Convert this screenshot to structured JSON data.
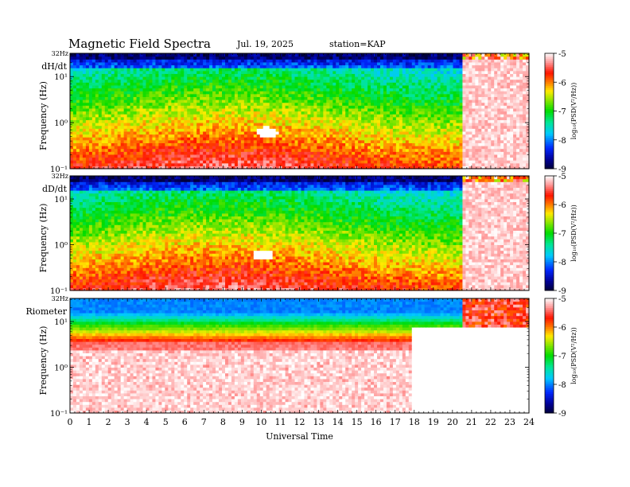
{
  "header": {
    "title": "Magnetic Field Spectra",
    "date": "Jul. 19, 2025",
    "station": "station=KAP"
  },
  "chart_data": [
    {
      "type": "heatmap",
      "panel_label": "dH/dt",
      "ylabel": "Frequency (Hz)",
      "xlabel": "",
      "y_scale": "log",
      "ylim": [
        0.1,
        32
      ],
      "yticks": [
        "10⁻¹",
        "10⁰",
        "10¹"
      ],
      "top_freq_label": "32Hz",
      "xlim": [
        0,
        24
      ],
      "colorbar": {
        "label": "log₁₀(PSD(V²/Hz))",
        "range": [
          -9,
          -5
        ],
        "ticks": [
          "-5",
          "-6",
          "-7",
          "-8",
          "-9"
        ]
      },
      "gap": {
        "center_hour": 10.3,
        "center_freq": 0.62
      },
      "disturbance_start_hour": 20.5
    },
    {
      "type": "heatmap",
      "panel_label": "dD/dt",
      "ylabel": "Frequency (Hz)",
      "xlabel": "",
      "y_scale": "log",
      "ylim": [
        0.1,
        32
      ],
      "yticks": [
        "10⁻¹",
        "10⁰",
        "10¹"
      ],
      "top_freq_label": "32Hz",
      "xlim": [
        0,
        24
      ],
      "colorbar": {
        "label": "log₁₀(PSD(V²/Hz))",
        "range": [
          -9,
          -5
        ],
        "ticks": [
          "-5",
          "-6",
          "-7",
          "-8",
          "-9"
        ]
      },
      "gap": {
        "center_hour": 10.1,
        "center_freq": 0.6
      },
      "disturbance_start_hour": 20.5
    },
    {
      "type": "heatmap",
      "panel_label": "Riometer",
      "ylabel": "Frequency (Hz)",
      "xlabel": "Universal Time",
      "y_scale": "log",
      "ylim": [
        0.1,
        32
      ],
      "yticks": [
        "10⁻¹",
        "10⁰",
        "10¹"
      ],
      "top_freq_label": "32Hz",
      "xlim": [
        0,
        24
      ],
      "xticks": [
        "0",
        "1",
        "2",
        "3",
        "4",
        "5",
        "6",
        "7",
        "8",
        "9",
        "10",
        "11",
        "12",
        "13",
        "14",
        "15",
        "16",
        "17",
        "18",
        "19",
        "20",
        "21",
        "22",
        "23",
        "24"
      ],
      "colorbar": {
        "label": "log₁₀(PSD(V²/Hz))",
        "range": [
          -9,
          -5
        ],
        "ticks": [
          "-5",
          "-6",
          "-7",
          "-8",
          "-9"
        ]
      },
      "disturbance_start_hour": 17.8
    }
  ]
}
